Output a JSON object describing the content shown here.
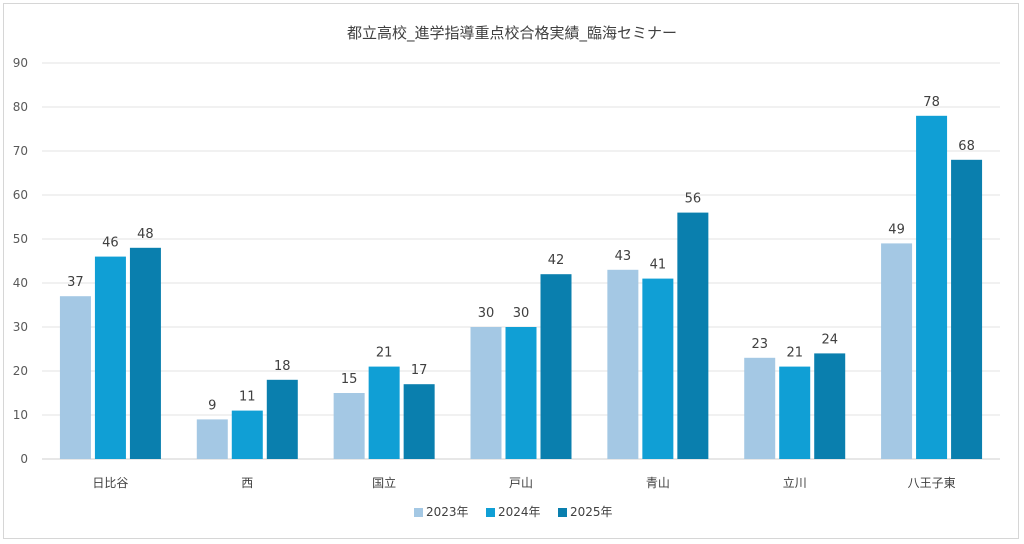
{
  "chart_data": {
    "type": "bar",
    "title": "都立高校_進学指導重点校合格実績_臨海セミナー",
    "categories": [
      "日比谷",
      "西",
      "国立",
      "戸山",
      "青山",
      "立川",
      "八王子東"
    ],
    "series": [
      {
        "name": "2023年",
        "color": "#a4c8e4",
        "values": [
          37,
          9,
          15,
          30,
          43,
          23,
          49
        ]
      },
      {
        "name": "2024年",
        "color": "#109fd5",
        "values": [
          46,
          11,
          21,
          30,
          41,
          21,
          78
        ]
      },
      {
        "name": "2025年",
        "color": "#0a7fae",
        "values": [
          48,
          18,
          17,
          42,
          56,
          24,
          68
        ]
      }
    ],
    "ylim": [
      0,
      90
    ],
    "yticks": [
      0,
      10,
      20,
      30,
      40,
      50,
      60,
      70,
      80,
      90
    ],
    "grid": true,
    "legend": "bottom-center"
  }
}
